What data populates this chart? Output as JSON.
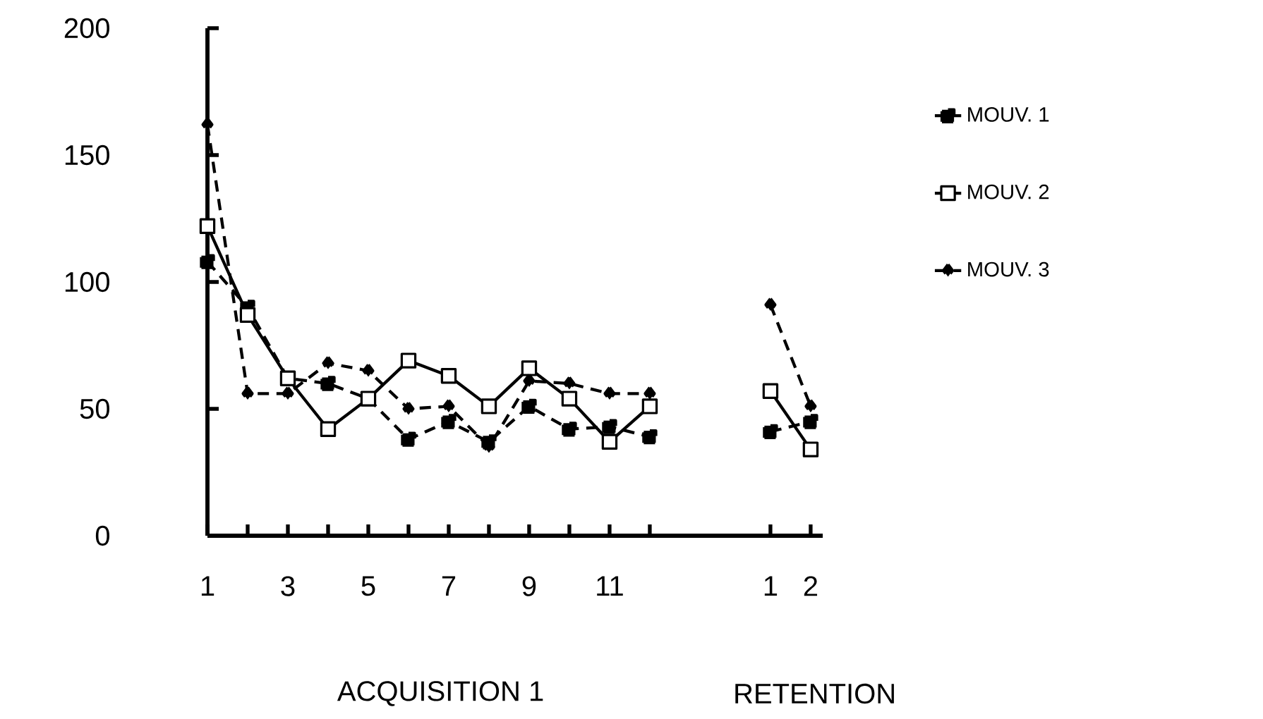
{
  "chart_data": {
    "type": "line",
    "xlabel": "ACQUISITION 1",
    "annotations": [
      "RETENTION"
    ],
    "categories": [
      "1",
      null,
      "3",
      null,
      "5",
      null,
      "7",
      null,
      "9",
      null,
      "11",
      null,
      null,
      null,
      "1",
      "2"
    ],
    "ylim": [
      0,
      200
    ],
    "yticks": [
      0,
      50,
      100,
      150,
      200
    ],
    "legend": "right",
    "grid": false,
    "series": [
      {
        "name": "MOUV. 1",
        "color": "#000000",
        "marker": "square",
        "line_style": "dashed",
        "values": [
          108,
          90,
          62,
          60,
          54,
          38,
          45,
          37,
          51,
          42,
          43,
          39,
          null,
          null,
          41,
          45
        ]
      },
      {
        "name": "MOUV. 2",
        "color": "#000000",
        "marker": "square_open",
        "line_style": "solid",
        "values": [
          122,
          87,
          62,
          42,
          54,
          69,
          63,
          51,
          66,
          54,
          37,
          51,
          null,
          null,
          57,
          34
        ]
      },
      {
        "name": "MOUV. 3",
        "color": "#000000",
        "marker": "diamond",
        "line_style": "dashed",
        "values": [
          162,
          56,
          56,
          68,
          65,
          50,
          51,
          35,
          61,
          60,
          56,
          56,
          null,
          null,
          91,
          51
        ]
      }
    ]
  }
}
